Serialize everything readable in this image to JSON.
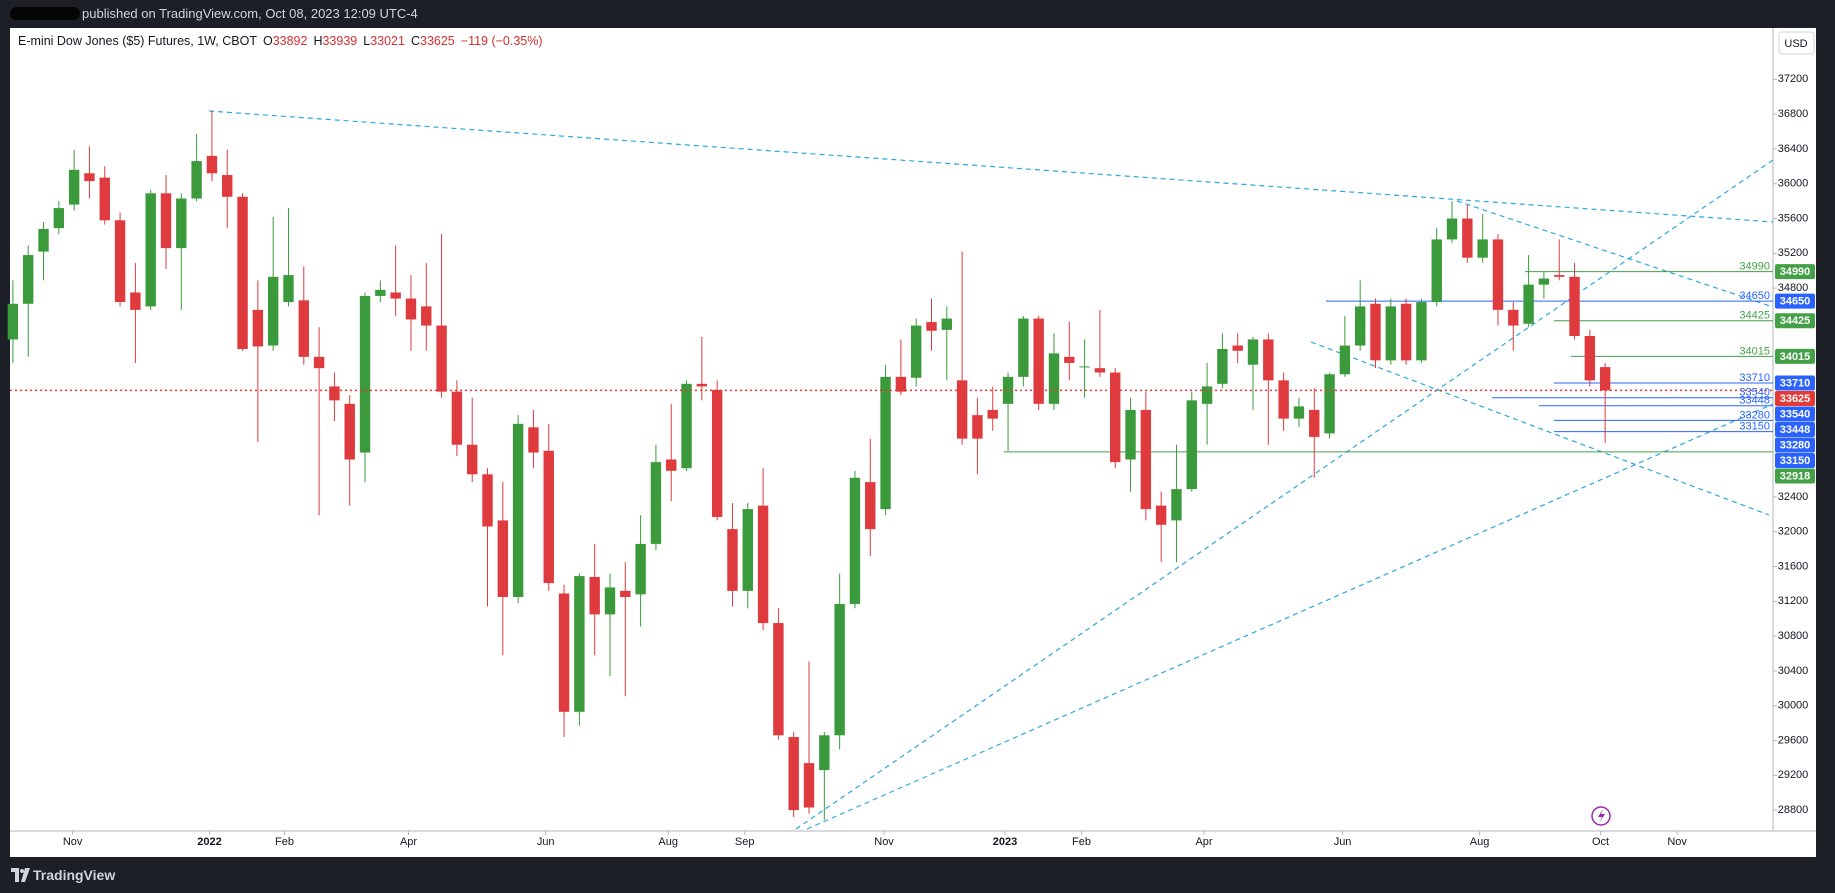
{
  "header": {
    "published": "published on TradingView.com, Oct 08, 2023 12:09 UTC-4",
    "footer": "TradingView"
  },
  "chart_data": {
    "type": "candlestick",
    "title": "E-mini Dow Jones ($5) Futures, 1W, CBOT",
    "ohlc_letters": [
      "O",
      "H",
      "L",
      "C"
    ],
    "change": "−119 (−0.35%)",
    "currency": "USD",
    "up_color": "#3b9a3b",
    "down_color": "#df3a3e",
    "grid": false,
    "open": [
      34210,
      34620,
      35220,
      35490,
      35760,
      36120,
      36070,
      35580,
      34750,
      34590,
      35890,
      35260,
      35830,
      36320,
      36100,
      35850,
      34550,
      34140,
      34640,
      34660,
      34010,
      33670,
      33470,
      32910,
      34710,
      34750,
      34680,
      34590,
      34370,
      33610,
      33000,
      32660,
      32130,
      31250,
      33200,
      32930,
      31290,
      29930,
      31480,
      31050,
      31320,
      31280,
      31860,
      32830,
      32730,
      33700,
      33630,
      32030,
      31320,
      32300,
      30950,
      29640,
      29340,
      29260,
      29660,
      31170,
      32570,
      32260,
      33780,
      33770,
      34410,
      34320,
      33740,
      33340,
      33400,
      33470,
      33780,
      34450,
      33470,
      34010,
      33890,
      33880,
      33830,
      32830,
      33400,
      32300,
      32130,
      32490,
      33470,
      33700,
      34140,
      33920,
      34210,
      33740,
      33300,
      33400,
      33130,
      33810,
      34140,
      34620,
      33970,
      34620,
      33970,
      34640,
      35360,
      35600,
      35150,
      35360,
      34550,
      34390,
      34840,
      34950,
      34930,
      34250,
      33892
    ],
    "high": [
      34890,
      35290,
      35560,
      35800,
      36390,
      36430,
      36200,
      35670,
      35090,
      35930,
      36100,
      35890,
      36570,
      36840,
      36390,
      35890,
      34890,
      35620,
      35720,
      35050,
      34350,
      33830,
      33570,
      34750,
      34890,
      35290,
      34950,
      35090,
      35420,
      33740,
      33540,
      32730,
      32570,
      33340,
      33400,
      33240,
      31390,
      31520,
      31860,
      31520,
      31650,
      32190,
      33000,
      33470,
      33740,
      34240,
      33740,
      32330,
      32330,
      32730,
      31120,
      29700,
      30510,
      29700,
      31520,
      32700,
      33070,
      33920,
      34210,
      34450,
      34680,
      34590,
      35220,
      33540,
      33670,
      33830,
      34480,
      34480,
      34280,
      34410,
      34210,
      34550,
      33880,
      33540,
      33610,
      32460,
      33000,
      33610,
      33940,
      34280,
      34280,
      34240,
      34280,
      33830,
      33540,
      33650,
      33830,
      34480,
      34890,
      34680,
      34680,
      34680,
      34680,
      35490,
      35800,
      35760,
      35650,
      35420,
      34640,
      35180,
      34990,
      35360,
      35090,
      34320,
      33939
    ],
    "low": [
      33940,
      34010,
      34890,
      35420,
      35690,
      35830,
      35530,
      34590,
      33940,
      34550,
      35020,
      34550,
      35800,
      36030,
      35490,
      34080,
      33030,
      34080,
      34590,
      33920,
      32190,
      33270,
      32300,
      32570,
      34640,
      34480,
      34080,
      34080,
      33540,
      32870,
      32570,
      31140,
      30580,
      31180,
      32730,
      31320,
      29640,
      29770,
      30580,
      30340,
      30110,
      30910,
      31790,
      32350,
      32700,
      33510,
      32130,
      31140,
      31120,
      30870,
      29610,
      28720,
      28760,
      28690,
      29500,
      31120,
      31720,
      32190,
      33570,
      33670,
      34080,
      33740,
      33000,
      32660,
      33160,
      32930,
      33670,
      33400,
      33400,
      33740,
      33540,
      33780,
      32730,
      32460,
      32130,
      31650,
      31650,
      32460,
      33000,
      33650,
      33940,
      33400,
      33000,
      33160,
      33200,
      32620,
      33070,
      33780,
      34080,
      33880,
      33920,
      33920,
      33940,
      34590,
      35320,
      35090,
      35090,
      34370,
      34080,
      34350,
      34680,
      34890,
      34210,
      33670,
      33021
    ],
    "close": [
      34620,
      35180,
      35480,
      35720,
      36160,
      36030,
      35580,
      34640,
      34550,
      35890,
      35260,
      35830,
      36260,
      36120,
      35850,
      34100,
      34130,
      34930,
      34950,
      34010,
      33880,
      33510,
      32830,
      34710,
      34780,
      34680,
      34440,
      34370,
      33610,
      33000,
      32660,
      32060,
      31250,
      33240,
      32910,
      31410,
      29930,
      31490,
      31050,
      31360,
      31250,
      31860,
      32800,
      32700,
      33700,
      33670,
      32170,
      31320,
      32260,
      30950,
      29660,
      28800,
      28830,
      29660,
      31170,
      32620,
      32030,
      33780,
      33610,
      34370,
      34310,
      34450,
      33070,
      33070,
      33300,
      33780,
      34450,
      33470,
      34050,
      33940,
      33900,
      33830,
      32800,
      33400,
      32260,
      32080,
      32490,
      33510,
      33670,
      34100,
      34080,
      34210,
      33740,
      33300,
      33440,
      33090,
      33810,
      34140,
      34590,
      33970,
      34590,
      33970,
      34640,
      35360,
      35600,
      35150,
      35360,
      34550,
      34370,
      34840,
      34910,
      34930,
      34250,
      33740,
      33625
    ],
    "ylim": [
      28560,
      37790
    ],
    "yticks": [
      28800,
      29200,
      29600,
      30000,
      30400,
      30800,
      31200,
      31600,
      32000,
      32400,
      34800,
      35200,
      35600,
      36000,
      36400,
      36800,
      37200
    ],
    "xticks": [
      {
        "value": 3.9,
        "label": "Nov"
      },
      {
        "value": 12.84,
        "label": "2022"
      },
      {
        "value": 17.74,
        "label": "Feb"
      },
      {
        "value": 25.84,
        "label": "Apr"
      },
      {
        "value": 34.8,
        "label": "Jun"
      },
      {
        "value": 42.8,
        "label": "Aug"
      },
      {
        "value": 47.8,
        "label": "Sep"
      },
      {
        "value": 56.9,
        "label": "Nov"
      },
      {
        "value": 64.8,
        "label": "2023"
      },
      {
        "value": 69.8,
        "label": "Feb"
      },
      {
        "value": 77.8,
        "label": "Apr"
      },
      {
        "value": 86.85,
        "label": "Jun"
      },
      {
        "value": 95.8,
        "label": "Aug"
      },
      {
        "value": 103.7,
        "label": "Oct"
      },
      {
        "value": 108.7,
        "label": "Nov"
      }
    ],
    "levels": [
      {
        "value": 34990,
        "color": "#43a047"
      },
      {
        "value": 34650,
        "color": "#2962ff"
      },
      {
        "value": 34425,
        "color": "#43a047"
      },
      {
        "value": 34015,
        "color": "#43a047"
      },
      {
        "value": 33710,
        "color": "#2962ff"
      },
      {
        "value": 33540,
        "color": "#2962ff"
      },
      {
        "value": 33448,
        "color": "#2962ff"
      },
      {
        "value": 33280,
        "color": "#2962ff"
      },
      {
        "value": 33150,
        "color": "#2962ff"
      },
      {
        "value": 32918,
        "color": "#43a047"
      }
    ]
  }
}
